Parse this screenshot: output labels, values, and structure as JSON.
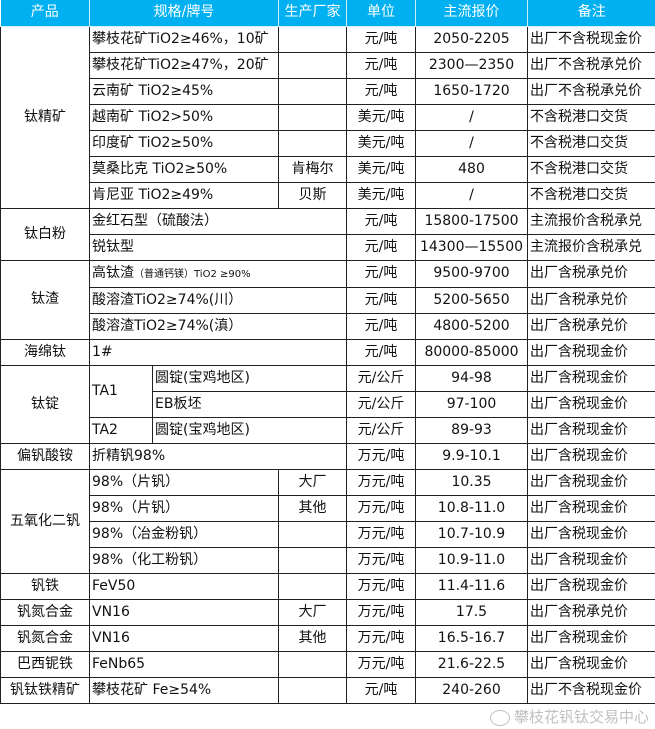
{
  "header": [
    "产品",
    "规格/牌号",
    "生产厂家",
    "单位",
    "主流报价",
    "备注"
  ],
  "rows": [
    {
      "product": "钛精矿",
      "spec": "攀枝花矿TiO2≥46%，10矿",
      "maker": "",
      "unit": "元/吨",
      "price": "2050-2205",
      "note": "出厂不含税现金价"
    },
    {
      "spec": "攀枝花矿TiO2≥47%，20矿",
      "maker": "",
      "unit": "元/吨",
      "price": "2300—2350",
      "note": "出厂不含税承兑价"
    },
    {
      "spec": "云南矿 TiO2≥45%",
      "maker": "",
      "unit": "元/吨",
      "price": "1650-1720",
      "note": "出厂不含税承兑价"
    },
    {
      "spec": "越南矿 TiO2>50%",
      "maker": "",
      "unit": "美元/吨",
      "price": "/",
      "note": "不含税港口交货"
    },
    {
      "spec": "印度矿 TiO2≥50%",
      "maker": "",
      "unit": "美元/吨",
      "price": "/",
      "note": "不含税港口交货"
    },
    {
      "spec": "莫桑比克 TiO2≥50%",
      "maker": "肯梅尔",
      "unit": "美元/吨",
      "price": "480",
      "note": "不含税港口交货"
    },
    {
      "spec": "肯尼亚 TiO2≥49%",
      "maker": "贝斯",
      "unit": "美元/吨",
      "price": "/",
      "note": "不含税港口交货"
    },
    {
      "product": "钛白粉",
      "spec": "金红石型（硫酸法）",
      "unit": "元/吨",
      "price": "15800-17500",
      "note": "主流报价含税承兑"
    },
    {
      "spec": "锐钛型",
      "unit": "元/吨",
      "price": "14300—15500",
      "note": "主流报价含税承兑"
    },
    {
      "product": "钛渣",
      "spec": "高钛渣",
      "spec_small": "（普通钙镁）TiO2 ≥90%",
      "unit": "元/吨",
      "price": "9500-9700",
      "note": "出厂含税承兑价"
    },
    {
      "spec": "酸溶渣TiO2≥74%(川）",
      "unit": "元/吨",
      "price": "5200-5650",
      "note": "出厂含税承兑价"
    },
    {
      "spec": "酸溶渣TiO2≥74%(滇）",
      "unit": "元/吨",
      "price": "4800-5200",
      "note": "出厂含税承兑价"
    },
    {
      "product": "海绵钛",
      "spec": "1#",
      "unit": "元/吨",
      "price": "80000-85000",
      "note": "出厂含税现金价"
    },
    {
      "product": "钛锭",
      "grade": "TA1",
      "spec": "圆锭(宝鸡地区)",
      "unit": "元/公斤",
      "price": "94-98",
      "note": "出厂含税现金价"
    },
    {
      "spec": "EB板坯",
      "unit": "元/公斤",
      "price": "97-100",
      "note": "出厂含税现金价"
    },
    {
      "grade": "TA2",
      "spec": "圆锭(宝鸡地区)",
      "unit": "元/公斤",
      "price": "89-93",
      "note": "出厂含税现金价"
    },
    {
      "product": "偏钒酸铵",
      "spec": "折精钒98%",
      "unit": "万元/吨",
      "price": "9.9-10.1",
      "note": "出厂含税现金价"
    },
    {
      "product": "五氧化二钒",
      "spec": "98%（片钒）",
      "maker": "大厂",
      "unit": "万元/吨",
      "price": "10.35",
      "note": "出厂含税现金价"
    },
    {
      "spec": "98%（片钒）",
      "maker": "其他",
      "unit": "万元/吨",
      "price": "10.8-11.0",
      "note": "出厂含税现金价"
    },
    {
      "spec": "98%（冶金粉钒）",
      "maker": "",
      "unit": "万元/吨",
      "price": "10.7-10.9",
      "note": "出厂含税现金价"
    },
    {
      "spec": "98%（化工粉钒）",
      "maker": "",
      "unit": "万元/吨",
      "price": "10.9-11.0",
      "note": "出厂含税现金价"
    },
    {
      "product": "钒铁",
      "spec": "FeV50",
      "maker": "",
      "unit": "万元/吨",
      "price": "11.4-11.6",
      "note": "出厂含税现金价"
    },
    {
      "product": "钒氮合金",
      "spec": "VN16",
      "maker": "大厂",
      "unit": "万元/吨",
      "price": "17.5",
      "note": "出厂含税承兑价"
    },
    {
      "product": "钒氮合金",
      "spec": "VN16",
      "maker": "其他",
      "unit": "万元/吨",
      "price": "16.5-16.7",
      "note": "出厂含税现金价"
    },
    {
      "product": "巴西铌铁",
      "spec": "FeNb65",
      "maker": "",
      "unit": "万元/吨",
      "price": "21.6-22.5",
      "note": "出厂含税现金价"
    },
    {
      "product": "钒钛铁精矿",
      "spec": "攀枝花矿 Fe≥54%",
      "maker": "",
      "unit": "元/吨",
      "price": "240-260",
      "note": "出厂不含税现金价"
    }
  ],
  "watermark": {
    "text": "攀枝花钒钛交易中心",
    "icon": "wechat-icon"
  }
}
